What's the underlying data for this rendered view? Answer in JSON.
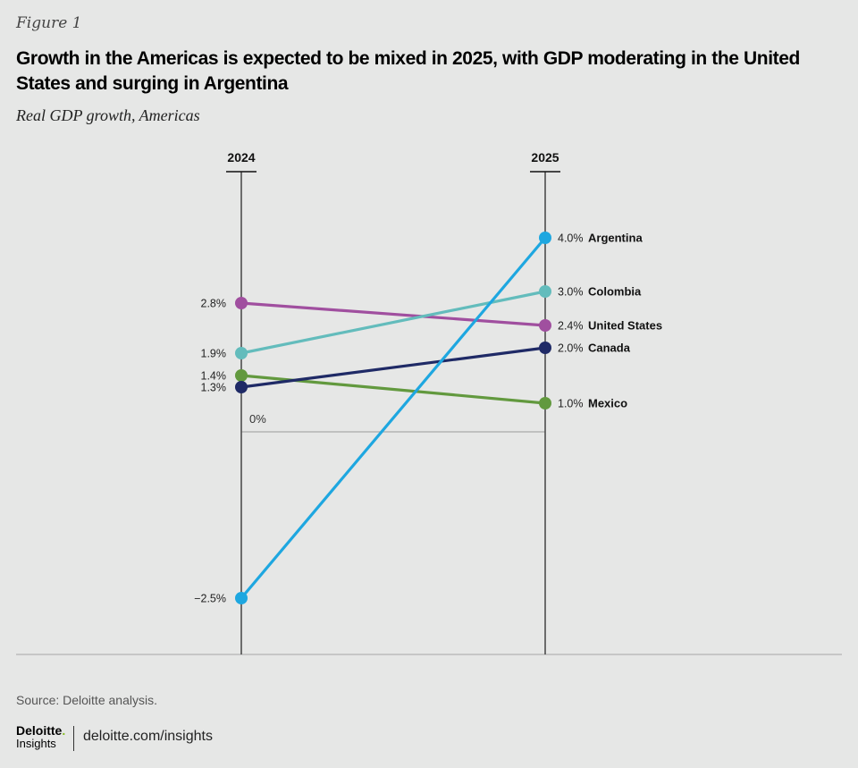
{
  "figure_label": "Figure 1",
  "title": "Growth in the Americas is expected to be mixed in 2025, with GDP moderating in the United States and surging in Argentina",
  "subtitle": "Real GDP growth, Americas",
  "source": "Source: Deloitte analysis.",
  "footer": {
    "brand": "Deloitte",
    "brand_dot": ".",
    "brand_sub": "Insights",
    "url": "deloitte.com/insights"
  },
  "chart_data": {
    "type": "line",
    "subtype": "slope",
    "title": "Growth in the Americas is expected to be mixed in 2025, with GDP moderating in the United States and surging in Argentina",
    "subtitle": "Real GDP growth, Americas",
    "categories": [
      "2024",
      "2025"
    ],
    "zero_label": "0%",
    "unit": "%",
    "series": [
      {
        "name": "United States",
        "values": [
          2.8,
          2.4
        ],
        "labels": [
          "2.8%",
          "2.4%"
        ],
        "color": "#a04f9f"
      },
      {
        "name": "Colombia",
        "values": [
          1.9,
          3.0
        ],
        "labels": [
          "1.9%",
          "3.0%"
        ],
        "color": "#63bcbc"
      },
      {
        "name": "Mexico",
        "values": [
          1.4,
          1.0
        ],
        "labels": [
          "1.4%",
          "1.0%"
        ],
        "color": "#62993e"
      },
      {
        "name": "Canada",
        "values": [
          1.3,
          2.0
        ],
        "labels": [
          "1.3%",
          "2.0%"
        ],
        "color": "#1f2a66"
      },
      {
        "name": "Argentina",
        "values": [
          -2.5,
          4.0
        ],
        "labels": [
          "−2.5%",
          "4.0%"
        ],
        "color": "#1ea7e0"
      }
    ]
  }
}
